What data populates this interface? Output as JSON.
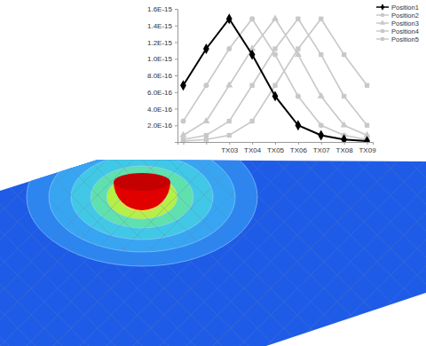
{
  "chart_data": {
    "type": "line",
    "categories": [
      null,
      null,
      "TX03",
      "TX04",
      "TX05",
      "TX06",
      "TX07",
      "TX08",
      "TX09"
    ],
    "ylim": [
      0,
      1.6e-15
    ],
    "yticks": [
      {
        "value": 2e-16,
        "label": "2.0E-16"
      },
      {
        "value": 4e-16,
        "label": "4.0E-16"
      },
      {
        "value": 6e-16,
        "label": "6.0E-16"
      },
      {
        "value": 8e-16,
        "label": "8.0E-16"
      },
      {
        "value": 1e-15,
        "label": "1.0E-15"
      },
      {
        "value": 1.2e-15,
        "label": "1.2E-15"
      },
      {
        "value": 1.4e-15,
        "label": "1.4E-15"
      },
      {
        "value": 1.6e-15,
        "label": "1.6E-15"
      }
    ],
    "legend": "top-right",
    "series": [
      {
        "name": "Position1",
        "color": "#000000",
        "marker": "diamond",
        "values": [
          6.8e-16,
          1.12e-15,
          1.48e-15,
          1.05e-15,
          5.5e-16,
          2e-16,
          8e-17,
          3e-17,
          1e-17
        ]
      },
      {
        "name": "Position2",
        "color": "#c8c8c8",
        "marker": "circle",
        "values": [
          2.5e-16,
          6.8e-16,
          1.12e-15,
          1.48e-15,
          1.05e-15,
          5.5e-16,
          2e-16,
          8e-17,
          3e-17
        ]
      },
      {
        "name": "Position3",
        "color": "#c8c8c8",
        "marker": "triangle",
        "values": [
          8e-17,
          2.5e-16,
          6.8e-16,
          1.12e-15,
          1.48e-15,
          1.05e-15,
          5.5e-16,
          2e-16,
          8e-17
        ]
      },
      {
        "name": "Position4",
        "color": "#c8c8c8",
        "marker": "square",
        "values": [
          3e-17,
          8e-17,
          2.5e-16,
          6.8e-16,
          1.12e-15,
          1.48e-15,
          1.05e-15,
          5.5e-16,
          2e-16
        ]
      },
      {
        "name": "Position5",
        "color": "#c8c8c8",
        "marker": "square",
        "values": [
          1e-17,
          3e-17,
          8e-17,
          2.5e-16,
          6.8e-16,
          1.12e-15,
          1.48e-15,
          1.05e-15,
          6.8e-16
        ]
      }
    ]
  }
}
